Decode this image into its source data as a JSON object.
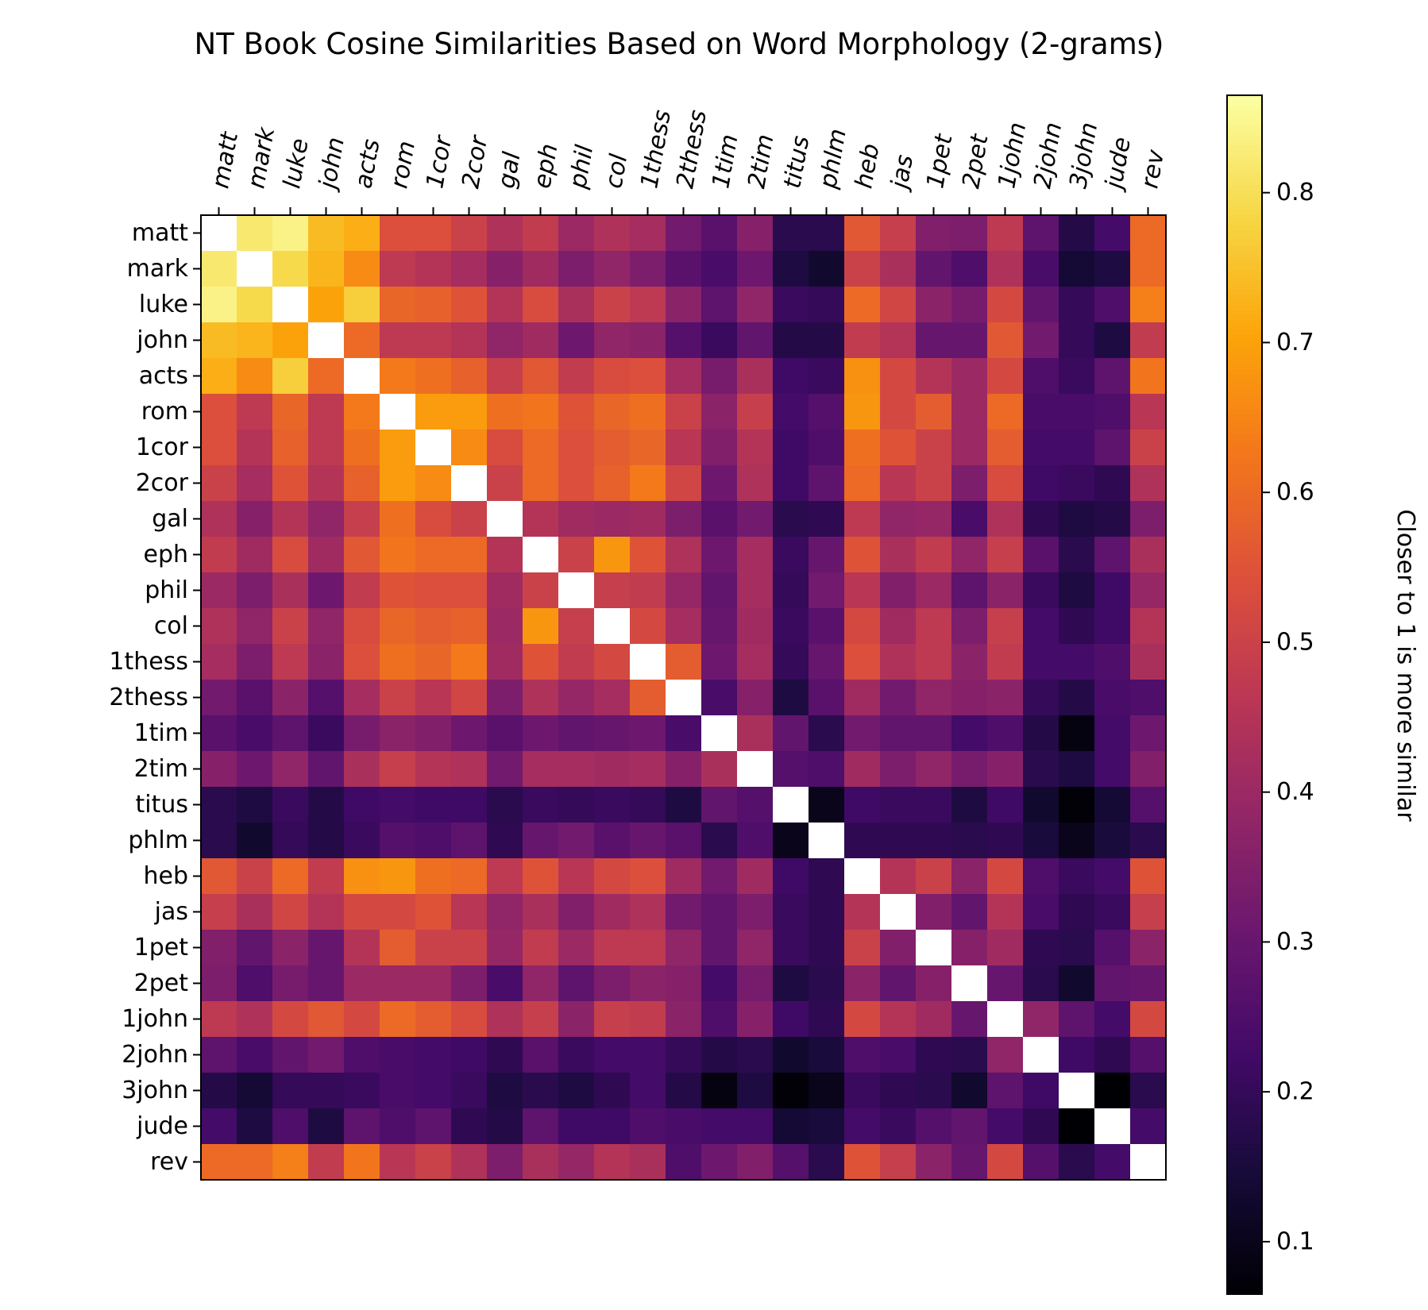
{
  "chart_data": {
    "type": "heatmap",
    "title": "NT Book Cosine Similarities Based on Word Morphology (2-grams)",
    "xlabel": "",
    "ylabel": "",
    "labels": [
      "matt",
      "mark",
      "luke",
      "john",
      "acts",
      "rom",
      "1cor",
      "2cor",
      "gal",
      "eph",
      "phil",
      "col",
      "1thess",
      "2thess",
      "1tim",
      "2tim",
      "titus",
      "phlm",
      "heb",
      "jas",
      "1pet",
      "2pet",
      "1john",
      "2john",
      "3john",
      "jude",
      "rev"
    ],
    "colorbar": {
      "label": "Closer to 1 is more similar",
      "range": [
        0.065,
        0.865
      ],
      "ticks": [
        0.1,
        0.2,
        0.3,
        0.4,
        0.5,
        0.6,
        0.7,
        0.8
      ],
      "tick_labels": [
        "0.1",
        "0.2",
        "0.3",
        "0.4",
        "0.5",
        "0.6",
        "0.7",
        "0.8"
      ],
      "colormap": "inferno"
    },
    "diagonal_color": "#ffffff",
    "matrix": [
      [
        1,
        0.82,
        0.84,
        0.74,
        0.72,
        0.54,
        0.54,
        0.5,
        0.44,
        0.48,
        0.4,
        0.44,
        0.42,
        0.32,
        0.27,
        0.36,
        0.18,
        0.18,
        0.56,
        0.49,
        0.35,
        0.34,
        0.47,
        0.28,
        0.17,
        0.23,
        0.6
      ],
      [
        0.82,
        1,
        0.79,
        0.73,
        0.66,
        0.47,
        0.45,
        0.42,
        0.36,
        0.41,
        0.34,
        0.38,
        0.34,
        0.27,
        0.24,
        0.31,
        0.16,
        0.13,
        0.5,
        0.43,
        0.29,
        0.25,
        0.44,
        0.24,
        0.14,
        0.16,
        0.6
      ],
      [
        0.84,
        0.79,
        1,
        0.7,
        0.77,
        0.59,
        0.58,
        0.55,
        0.45,
        0.53,
        0.43,
        0.5,
        0.47,
        0.37,
        0.28,
        0.38,
        0.21,
        0.2,
        0.6,
        0.51,
        0.37,
        0.33,
        0.52,
        0.29,
        0.2,
        0.25,
        0.64
      ],
      [
        0.74,
        0.73,
        0.7,
        1,
        0.6,
        0.47,
        0.47,
        0.45,
        0.38,
        0.41,
        0.31,
        0.38,
        0.37,
        0.26,
        0.21,
        0.29,
        0.17,
        0.17,
        0.48,
        0.45,
        0.3,
        0.3,
        0.56,
        0.32,
        0.2,
        0.16,
        0.48
      ],
      [
        0.72,
        0.66,
        0.77,
        0.6,
        1,
        0.63,
        0.61,
        0.58,
        0.49,
        0.56,
        0.48,
        0.53,
        0.54,
        0.42,
        0.33,
        0.43,
        0.22,
        0.21,
        0.67,
        0.52,
        0.45,
        0.4,
        0.52,
        0.25,
        0.21,
        0.28,
        0.62
      ],
      [
        0.54,
        0.47,
        0.59,
        0.47,
        0.63,
        1,
        0.69,
        0.69,
        0.61,
        0.62,
        0.55,
        0.59,
        0.61,
        0.5,
        0.37,
        0.49,
        0.23,
        0.26,
        0.68,
        0.52,
        0.57,
        0.4,
        0.6,
        0.24,
        0.24,
        0.25,
        0.46
      ],
      [
        0.54,
        0.45,
        0.58,
        0.47,
        0.61,
        0.69,
        1,
        0.66,
        0.53,
        0.6,
        0.54,
        0.57,
        0.59,
        0.46,
        0.35,
        0.45,
        0.22,
        0.25,
        0.61,
        0.55,
        0.5,
        0.4,
        0.57,
        0.23,
        0.23,
        0.28,
        0.5
      ],
      [
        0.5,
        0.42,
        0.55,
        0.45,
        0.58,
        0.69,
        0.66,
        1,
        0.5,
        0.6,
        0.54,
        0.58,
        0.63,
        0.51,
        0.31,
        0.44,
        0.22,
        0.28,
        0.6,
        0.46,
        0.5,
        0.34,
        0.53,
        0.22,
        0.21,
        0.19,
        0.44
      ],
      [
        0.44,
        0.36,
        0.45,
        0.38,
        0.49,
        0.61,
        0.53,
        0.5,
        1,
        0.45,
        0.41,
        0.4,
        0.41,
        0.34,
        0.27,
        0.32,
        0.18,
        0.19,
        0.47,
        0.38,
        0.39,
        0.24,
        0.44,
        0.19,
        0.16,
        0.17,
        0.34
      ],
      [
        0.48,
        0.41,
        0.53,
        0.41,
        0.56,
        0.62,
        0.6,
        0.6,
        0.45,
        1,
        0.5,
        0.68,
        0.55,
        0.44,
        0.31,
        0.42,
        0.21,
        0.3,
        0.55,
        0.43,
        0.48,
        0.38,
        0.49,
        0.27,
        0.18,
        0.28,
        0.43
      ],
      [
        0.4,
        0.34,
        0.43,
        0.31,
        0.48,
        0.55,
        0.54,
        0.54,
        0.41,
        0.5,
        1,
        0.49,
        0.48,
        0.39,
        0.29,
        0.42,
        0.2,
        0.32,
        0.46,
        0.35,
        0.4,
        0.28,
        0.37,
        0.21,
        0.16,
        0.22,
        0.39
      ],
      [
        0.44,
        0.38,
        0.5,
        0.38,
        0.53,
        0.59,
        0.57,
        0.58,
        0.4,
        0.68,
        0.49,
        1,
        0.52,
        0.42,
        0.3,
        0.41,
        0.21,
        0.27,
        0.52,
        0.41,
        0.47,
        0.34,
        0.49,
        0.23,
        0.19,
        0.22,
        0.45
      ],
      [
        0.42,
        0.34,
        0.47,
        0.37,
        0.54,
        0.61,
        0.59,
        0.63,
        0.41,
        0.55,
        0.48,
        0.52,
        1,
        0.57,
        0.31,
        0.42,
        0.2,
        0.3,
        0.54,
        0.44,
        0.47,
        0.37,
        0.48,
        0.23,
        0.23,
        0.25,
        0.43
      ],
      [
        0.32,
        0.27,
        0.37,
        0.26,
        0.42,
        0.5,
        0.46,
        0.51,
        0.34,
        0.44,
        0.39,
        0.42,
        0.57,
        1,
        0.24,
        0.36,
        0.16,
        0.27,
        0.41,
        0.32,
        0.38,
        0.36,
        0.37,
        0.2,
        0.17,
        0.24,
        0.25
      ],
      [
        0.27,
        0.24,
        0.28,
        0.21,
        0.33,
        0.37,
        0.35,
        0.31,
        0.27,
        0.31,
        0.29,
        0.3,
        0.31,
        0.24,
        1,
        0.43,
        0.29,
        0.18,
        0.32,
        0.29,
        0.29,
        0.23,
        0.25,
        0.17,
        0.085,
        0.23,
        0.31
      ],
      [
        0.36,
        0.31,
        0.38,
        0.29,
        0.43,
        0.49,
        0.45,
        0.44,
        0.32,
        0.42,
        0.42,
        0.41,
        0.42,
        0.36,
        0.43,
        1,
        0.26,
        0.25,
        0.41,
        0.34,
        0.38,
        0.33,
        0.36,
        0.18,
        0.16,
        0.23,
        0.35
      ],
      [
        0.18,
        0.16,
        0.21,
        0.17,
        0.22,
        0.23,
        0.22,
        0.22,
        0.18,
        0.21,
        0.2,
        0.21,
        0.2,
        0.16,
        0.29,
        0.26,
        1,
        0.1,
        0.22,
        0.21,
        0.21,
        0.16,
        0.22,
        0.13,
        0.07,
        0.14,
        0.26
      ],
      [
        0.18,
        0.13,
        0.2,
        0.17,
        0.21,
        0.26,
        0.25,
        0.28,
        0.19,
        0.3,
        0.32,
        0.27,
        0.3,
        0.27,
        0.18,
        0.25,
        0.1,
        1,
        0.19,
        0.19,
        0.19,
        0.18,
        0.19,
        0.15,
        0.1,
        0.15,
        0.18
      ],
      [
        0.56,
        0.5,
        0.6,
        0.48,
        0.67,
        0.68,
        0.61,
        0.6,
        0.47,
        0.55,
        0.46,
        0.52,
        0.54,
        0.41,
        0.32,
        0.41,
        0.22,
        0.19,
        1,
        0.45,
        0.5,
        0.37,
        0.52,
        0.25,
        0.21,
        0.23,
        0.55
      ],
      [
        0.49,
        0.43,
        0.51,
        0.45,
        0.52,
        0.52,
        0.55,
        0.46,
        0.38,
        0.43,
        0.35,
        0.41,
        0.44,
        0.32,
        0.29,
        0.34,
        0.21,
        0.19,
        0.45,
        1,
        0.35,
        0.29,
        0.45,
        0.24,
        0.19,
        0.21,
        0.49
      ],
      [
        0.35,
        0.29,
        0.37,
        0.3,
        0.45,
        0.57,
        0.5,
        0.5,
        0.39,
        0.48,
        0.4,
        0.47,
        0.47,
        0.38,
        0.29,
        0.38,
        0.21,
        0.19,
        0.5,
        0.35,
        1,
        0.36,
        0.41,
        0.19,
        0.18,
        0.26,
        0.37
      ],
      [
        0.34,
        0.25,
        0.33,
        0.3,
        0.4,
        0.4,
        0.4,
        0.34,
        0.24,
        0.38,
        0.28,
        0.34,
        0.37,
        0.36,
        0.23,
        0.33,
        0.16,
        0.18,
        0.37,
        0.29,
        0.36,
        1,
        0.3,
        0.18,
        0.13,
        0.29,
        0.3
      ],
      [
        0.47,
        0.44,
        0.52,
        0.56,
        0.52,
        0.6,
        0.57,
        0.53,
        0.44,
        0.49,
        0.37,
        0.49,
        0.48,
        0.37,
        0.25,
        0.36,
        0.22,
        0.19,
        0.52,
        0.45,
        0.41,
        0.3,
        1,
        0.38,
        0.28,
        0.23,
        0.52
      ],
      [
        0.28,
        0.24,
        0.29,
        0.32,
        0.25,
        0.24,
        0.23,
        0.22,
        0.19,
        0.27,
        0.21,
        0.23,
        0.23,
        0.2,
        0.17,
        0.18,
        0.13,
        0.15,
        0.25,
        0.24,
        0.19,
        0.18,
        0.38,
        1,
        0.22,
        0.19,
        0.26
      ],
      [
        0.17,
        0.14,
        0.2,
        0.2,
        0.21,
        0.24,
        0.23,
        0.21,
        0.16,
        0.18,
        0.16,
        0.19,
        0.23,
        0.17,
        0.085,
        0.16,
        0.07,
        0.1,
        0.21,
        0.19,
        0.18,
        0.13,
        0.28,
        0.22,
        1,
        0.065,
        0.18
      ],
      [
        0.23,
        0.16,
        0.25,
        0.16,
        0.28,
        0.25,
        0.28,
        0.19,
        0.17,
        0.28,
        0.22,
        0.22,
        0.25,
        0.24,
        0.23,
        0.23,
        0.14,
        0.15,
        0.23,
        0.21,
        0.26,
        0.29,
        0.23,
        0.19,
        0.065,
        1,
        0.23
      ],
      [
        0.6,
        0.6,
        0.64,
        0.48,
        0.62,
        0.46,
        0.5,
        0.44,
        0.34,
        0.43,
        0.39,
        0.45,
        0.43,
        0.25,
        0.31,
        0.35,
        0.26,
        0.18,
        0.55,
        0.49,
        0.37,
        0.3,
        0.52,
        0.26,
        0.18,
        0.23,
        1
      ]
    ]
  }
}
